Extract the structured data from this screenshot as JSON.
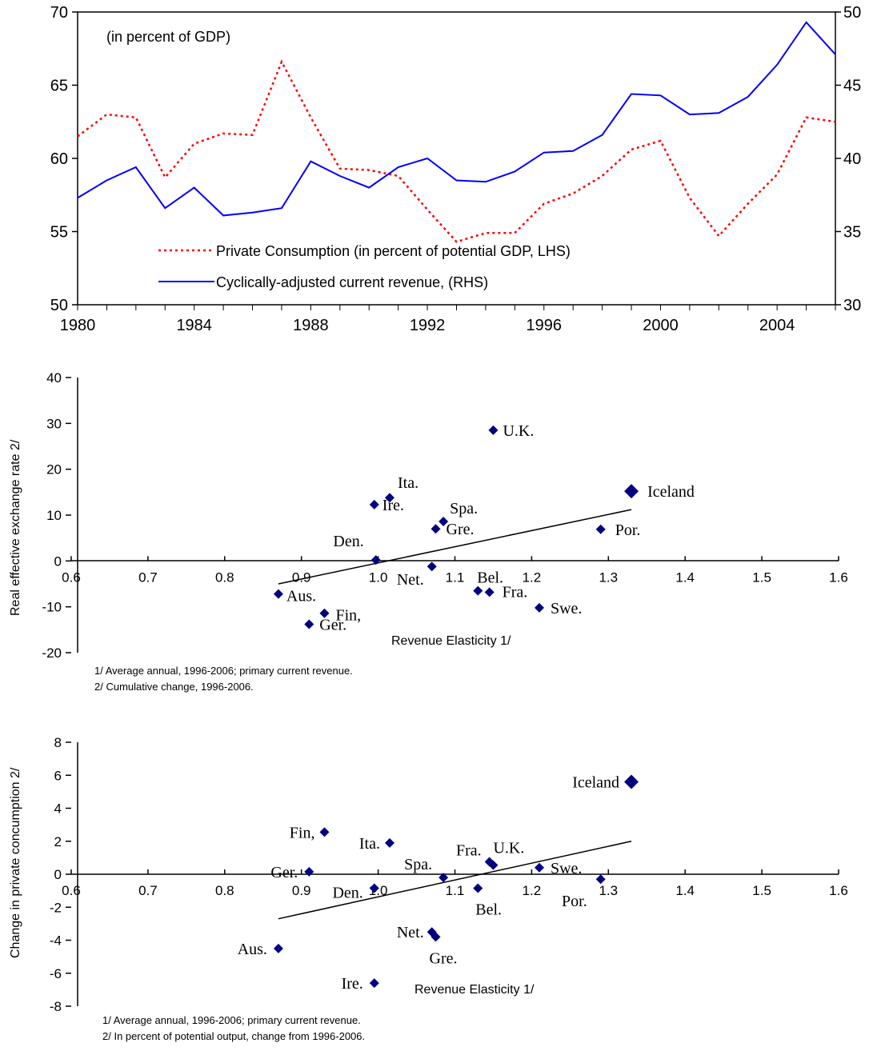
{
  "chart_data": [
    {
      "type": "line",
      "annotation": "(in percent of GDP)",
      "x": [
        1980,
        1981,
        1982,
        1983,
        1984,
        1985,
        1986,
        1987,
        1988,
        1989,
        1990,
        1991,
        1992,
        1993,
        1994,
        1995,
        1996,
        1997,
        1998,
        1999,
        2000,
        2001,
        2002,
        2003,
        2004,
        2005,
        2006
      ],
      "x_ticks": [
        "1980",
        "1984",
        "1988",
        "1992",
        "1996",
        "2000",
        "2004"
      ],
      "ylim_left": [
        50,
        70
      ],
      "yticks_left": [
        "50",
        "55",
        "60",
        "65",
        "70"
      ],
      "ylim_right": [
        30,
        50
      ],
      "yticks_right": [
        "30",
        "35",
        "40",
        "45",
        "50"
      ],
      "legend_position": "bottom-left",
      "series": [
        {
          "name": "Private Consumption (in percent of potential GDP, LHS)",
          "axis": "left",
          "style": "dotted",
          "color": "#ff0000",
          "values": [
            61.5,
            63.0,
            62.8,
            58.7,
            61.0,
            61.7,
            61.6,
            66.6,
            62.8,
            59.3,
            59.2,
            58.8,
            56.5,
            54.3,
            54.9,
            54.9,
            56.9,
            57.6,
            58.8,
            60.6,
            61.2,
            57.3,
            54.7,
            56.9,
            58.9,
            62.8,
            62.5
          ]
        },
        {
          "name": "Cyclically-adjusted current revenue, (RHS)",
          "axis": "right",
          "style": "solid",
          "color": "#0000ff",
          "values": [
            37.3,
            38.5,
            39.4,
            36.6,
            38.0,
            36.1,
            36.3,
            36.6,
            39.8,
            38.8,
            38.0,
            39.4,
            40.0,
            38.5,
            38.4,
            39.1,
            40.4,
            40.5,
            41.6,
            44.4,
            44.3,
            43.0,
            43.1,
            44.2,
            46.4,
            49.3,
            47.1
          ]
        }
      ]
    },
    {
      "type": "scatter",
      "xlabel": "Revenue Elasticity 1/",
      "ylabel": "Real effective exchange rate 2/",
      "xlim": [
        0.6,
        1.6
      ],
      "ylim": [
        -20,
        40
      ],
      "x_ticks": [
        "0.6",
        "0.7",
        "0.8",
        "0.9",
        "1.0",
        "1.1",
        "1.2",
        "1.3",
        "1.4",
        "1.5",
        "1.6"
      ],
      "y_ticks": [
        "-20",
        "-10",
        "0",
        "10",
        "20",
        "30",
        "40"
      ],
      "marker_color": "#000080",
      "trend_line": {
        "x": [
          0.87,
          1.33
        ],
        "y": [
          -5.0,
          11.2
        ]
      },
      "points": [
        {
          "label": "U.K.",
          "x": 1.15,
          "y": 28.5
        },
        {
          "label": "Iceland",
          "x": 1.33,
          "y": 15.2,
          "highlight": true
        },
        {
          "label": "Ita.",
          "x": 1.015,
          "y": 13.8
        },
        {
          "label": "Ire.",
          "x": 0.995,
          "y": 12.3
        },
        {
          "label": "Spa.",
          "x": 1.085,
          "y": 8.6
        },
        {
          "label": "Gre.",
          "x": 1.075,
          "y": 7.0
        },
        {
          "label": "Por.",
          "x": 1.29,
          "y": 6.9
        },
        {
          "label": "Den.",
          "x": 0.997,
          "y": 0.2
        },
        {
          "label": "Net.",
          "x": 1.07,
          "y": -1.2
        },
        {
          "label": "Bel.",
          "x": 1.13,
          "y": -6.5
        },
        {
          "label": "Fra.",
          "x": 1.145,
          "y": -6.8
        },
        {
          "label": "Aus.",
          "x": 0.87,
          "y": -7.2
        },
        {
          "label": "Swe.",
          "x": 1.21,
          "y": -10.2
        },
        {
          "label": "Fin,",
          "x": 0.93,
          "y": -11.4
        },
        {
          "label": "Ger.",
          "x": 0.91,
          "y": -13.8
        }
      ],
      "footnotes": [
        "1/ Average annual, 1996-2006; primary current revenue.",
        "2/ Cumulative change, 1996-2006."
      ]
    },
    {
      "type": "scatter",
      "xlabel": "Revenue Elasticity 1/",
      "ylabel": "Change in private concumption 2/",
      "xlim": [
        0.6,
        1.6
      ],
      "ylim": [
        -8,
        8
      ],
      "x_ticks": [
        "0.6",
        "0.7",
        "0.8",
        "0.9",
        "1.0",
        "1.1",
        "1.2",
        "1.3",
        "1.4",
        "1.5",
        "1.6"
      ],
      "y_ticks": [
        "-8",
        "-6",
        "-4",
        "-2",
        "0",
        "2",
        "4",
        "6",
        "8"
      ],
      "marker_color": "#000080",
      "trend_line": {
        "x": [
          0.87,
          1.33
        ],
        "y": [
          -2.7,
          2.0
        ]
      },
      "points": [
        {
          "label": "Iceland",
          "x": 1.33,
          "y": 5.6,
          "highlight": true
        },
        {
          "label": "Fin,",
          "x": 0.93,
          "y": 2.55
        },
        {
          "label": "Ita.",
          "x": 1.015,
          "y": 1.9
        },
        {
          "label": "Fra.",
          "x": 1.145,
          "y": 0.75
        },
        {
          "label": "U.K.",
          "x": 1.15,
          "y": 0.55
        },
        {
          "label": "Swe.",
          "x": 1.21,
          "y": 0.4
        },
        {
          "label": "Ger.",
          "x": 0.91,
          "y": 0.15
        },
        {
          "label": "Spa.",
          "x": 1.085,
          "y": -0.2
        },
        {
          "label": "Por.",
          "x": 1.29,
          "y": -0.3
        },
        {
          "label": "Den.",
          "x": 0.995,
          "y": -0.85
        },
        {
          "label": "Bel.",
          "x": 1.13,
          "y": -0.85
        },
        {
          "label": "Net.",
          "x": 1.07,
          "y": -3.5
        },
        {
          "label": "Gre.",
          "x": 1.075,
          "y": -3.8
        },
        {
          "label": "Aus.",
          "x": 0.87,
          "y": -4.5
        },
        {
          "label": "Ire.",
          "x": 0.995,
          "y": -6.6
        }
      ],
      "footnotes": [
        "1/ Average annual, 1996-2006; primary current revenue.",
        "2/ In percent of potential output, change from 1996-2006."
      ]
    }
  ]
}
